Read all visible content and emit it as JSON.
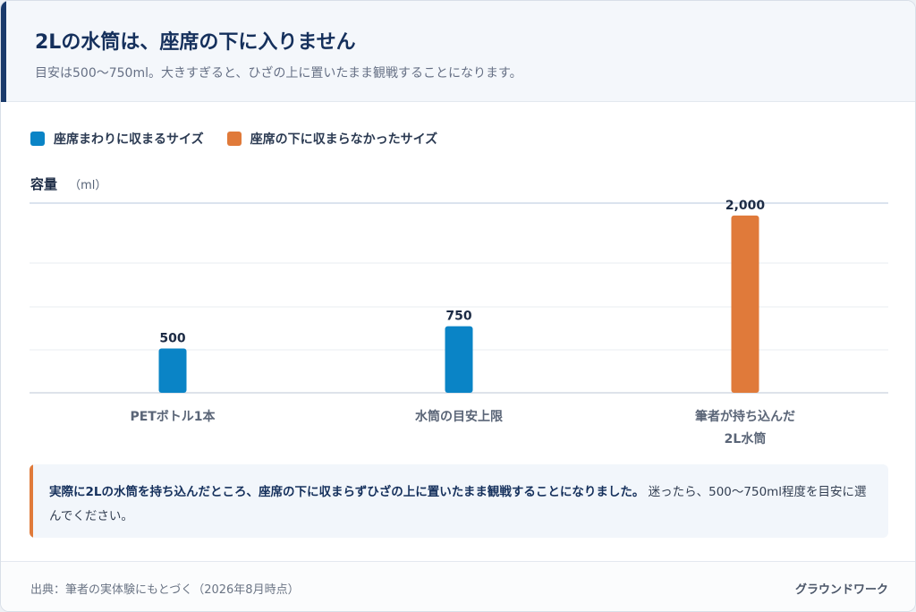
{
  "header": {
    "title": "2Lの水筒は、座席の下に入りません",
    "subtitle": "目安は500〜750ml。大きすぎると、ひざの上に置いたまま観戦することになります。"
  },
  "legend": [
    {
      "label": "座席まわりに収まるサイズ",
      "color": "#0a84c6"
    },
    {
      "label": "座席の下に収まらなかったサイズ",
      "color": "#e07a3a"
    }
  ],
  "chart_data": {
    "type": "bar",
    "ylabel": "容量",
    "yunit": "（ml）",
    "ylim": [
      0,
      2200
    ],
    "grid": true,
    "legend_position": "top-left",
    "categories": [
      [
        "PETボトル1本"
      ],
      [
        "水筒の目安上限"
      ],
      [
        "筆者が持ち込んだ",
        "2L水筒"
      ]
    ],
    "values": [
      500,
      750,
      2000
    ],
    "value_labels": [
      "500",
      "750",
      "2,000"
    ],
    "bar_groups": [
      0,
      0,
      1
    ]
  },
  "note": {
    "strong": "実際に2Lの水筒を持ち込んだところ、座席の下に収まらずひざの上に置いたまま観戦することになりました。",
    "text": " 迷ったら、500〜750ml程度を目安に選んでください。"
  },
  "footer": {
    "source": "出典：筆者の実体験にもとづく（2026年8月時点）",
    "brand": "グラウンドワーク"
  }
}
